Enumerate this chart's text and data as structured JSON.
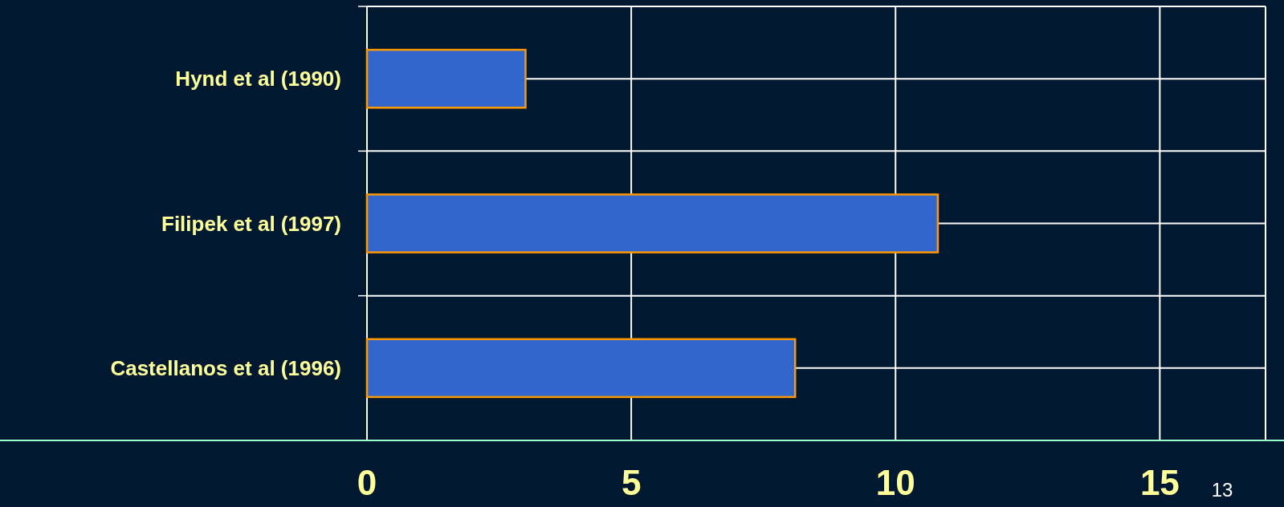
{
  "chart_data": {
    "type": "bar",
    "orientation": "horizontal",
    "categories": [
      "Hynd et al (1990)",
      "Filipek et al (1997)",
      "Castellanos et al (1996)"
    ],
    "values": [
      3,
      10.8,
      8.1
    ],
    "color": "#3366cc",
    "xlim": [
      0,
      17
    ],
    "xticks": [
      0,
      5,
      10,
      15
    ],
    "grid": true,
    "annotations": [
      "13"
    ]
  }
}
